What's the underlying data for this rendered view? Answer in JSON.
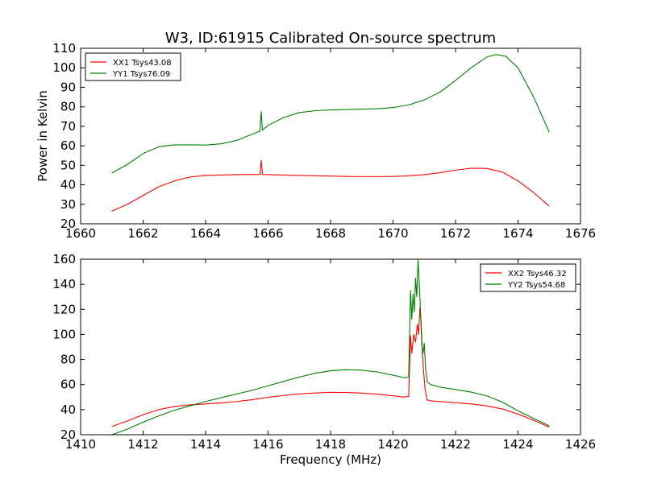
{
  "figure": {
    "title": "W3, ID:61915 Calibrated On-source spectrum",
    "ylabel": "Power in Kelvin",
    "xlabel": "Frequency (MHz)"
  },
  "chart_data": [
    {
      "type": "line",
      "title": "W3, ID:61915 Calibrated On-source spectrum",
      "xlabel": "",
      "ylabel": "Power in Kelvin",
      "xlim": [
        1660,
        1676
      ],
      "ylim": [
        20,
        110
      ],
      "xticks": [
        1660,
        1662,
        1664,
        1666,
        1668,
        1670,
        1672,
        1674,
        1676
      ],
      "yticks": [
        20,
        30,
        40,
        50,
        60,
        70,
        80,
        90,
        100,
        110
      ],
      "grid": false,
      "legend_position": "top-left",
      "series": [
        {
          "name": "XX1 Tsys43.08",
          "color": "#ff0000",
          "x": [
            1661.0,
            1661.5,
            1662.0,
            1662.5,
            1663.0,
            1663.5,
            1664.0,
            1664.5,
            1665.0,
            1665.5,
            1665.74,
            1665.78,
            1665.82,
            1666.0,
            1666.5,
            1667.0,
            1667.5,
            1668.0,
            1668.5,
            1669.0,
            1669.5,
            1670.0,
            1670.5,
            1671.0,
            1671.5,
            1672.0,
            1672.5,
            1673.0,
            1673.5,
            1674.0,
            1674.5,
            1675.0
          ],
          "y": [
            26.5,
            30.0,
            34.5,
            39.0,
            42.0,
            44.0,
            44.8,
            45.0,
            45.2,
            45.3,
            45.3,
            52.5,
            45.3,
            45.2,
            45.0,
            44.8,
            44.6,
            44.5,
            44.3,
            44.2,
            44.2,
            44.3,
            44.6,
            45.2,
            46.2,
            47.5,
            48.5,
            48.4,
            46.5,
            42.0,
            36.0,
            29.0
          ]
        },
        {
          "name": "YY1 Tsys76.09",
          "color": "#008000",
          "x": [
            1661.0,
            1661.5,
            1662.0,
            1662.5,
            1663.0,
            1663.5,
            1664.0,
            1664.5,
            1665.0,
            1665.5,
            1665.74,
            1665.78,
            1665.82,
            1666.0,
            1666.5,
            1667.0,
            1667.5,
            1668.0,
            1668.5,
            1669.0,
            1669.5,
            1670.0,
            1670.5,
            1671.0,
            1671.5,
            1672.0,
            1672.5,
            1673.0,
            1673.3,
            1673.6,
            1674.0,
            1674.5,
            1675.0
          ],
          "y": [
            46.0,
            50.5,
            56.0,
            59.5,
            60.5,
            60.5,
            60.4,
            61.0,
            62.8,
            66.0,
            67.5,
            77.5,
            68.0,
            70.5,
            74.5,
            77.0,
            78.0,
            78.4,
            78.6,
            78.8,
            79.0,
            79.6,
            81.0,
            83.5,
            87.5,
            93.5,
            100.0,
            105.5,
            106.8,
            106.0,
            100.0,
            85.0,
            67.0
          ]
        }
      ]
    },
    {
      "type": "line",
      "title": "",
      "xlabel": "Frequency (MHz)",
      "ylabel": "",
      "xlim": [
        1410,
        1426
      ],
      "ylim": [
        20,
        160
      ],
      "xticks": [
        1410,
        1412,
        1414,
        1416,
        1418,
        1420,
        1422,
        1424,
        1426
      ],
      "yticks": [
        20,
        40,
        60,
        80,
        100,
        120,
        140,
        160
      ],
      "grid": false,
      "legend_position": "top-right",
      "series": [
        {
          "name": "XX2 Tsys46.32",
          "color": "#ff0000",
          "x": [
            1411.0,
            1411.5,
            1412.0,
            1412.5,
            1413.0,
            1413.5,
            1414.0,
            1414.5,
            1415.0,
            1415.5,
            1416.0,
            1416.5,
            1417.0,
            1417.5,
            1418.0,
            1418.5,
            1419.0,
            1419.5,
            1420.0,
            1420.35,
            1420.5,
            1420.56,
            1420.6,
            1420.66,
            1420.72,
            1420.78,
            1420.82,
            1420.86,
            1420.9,
            1420.94,
            1420.98,
            1421.02,
            1421.08,
            1421.2,
            1421.5,
            1422.0,
            1422.5,
            1423.0,
            1423.5,
            1424.0,
            1424.5,
            1425.0
          ],
          "y": [
            26.5,
            31.0,
            36.0,
            40.0,
            42.5,
            43.8,
            44.5,
            45.3,
            46.5,
            48.0,
            49.8,
            51.3,
            52.5,
            53.3,
            53.8,
            53.7,
            53.2,
            52.3,
            51.0,
            50.0,
            50.5,
            99.0,
            85.0,
            100.0,
            94.0,
            108.0,
            100.0,
            121.0,
            110.0,
            85.0,
            70.0,
            58.0,
            48.0,
            47.0,
            46.5,
            45.5,
            44.5,
            43.0,
            40.5,
            36.5,
            31.5,
            26.0
          ]
        },
        {
          "name": "YY2 Tsys54.68",
          "color": "#008000",
          "x": [
            1411.0,
            1411.5,
            1412.0,
            1412.5,
            1413.0,
            1413.5,
            1414.0,
            1414.5,
            1415.0,
            1415.5,
            1416.0,
            1416.5,
            1417.0,
            1417.5,
            1418.0,
            1418.5,
            1419.0,
            1419.5,
            1420.0,
            1420.35,
            1420.5,
            1420.56,
            1420.6,
            1420.64,
            1420.68,
            1420.72,
            1420.76,
            1420.8,
            1420.84,
            1420.88,
            1420.92,
            1420.96,
            1421.0,
            1421.04,
            1421.1,
            1421.2,
            1421.5,
            1422.0,
            1422.5,
            1423.0,
            1423.5,
            1424.0,
            1424.5,
            1425.0
          ],
          "y": [
            20.0,
            24.5,
            30.0,
            35.0,
            39.5,
            43.0,
            46.5,
            49.5,
            52.5,
            55.5,
            59.0,
            62.5,
            66.0,
            69.0,
            71.0,
            71.8,
            71.5,
            70.0,
            67.5,
            65.5,
            66.0,
            135.0,
            112.0,
            132.0,
            118.0,
            145.0,
            130.0,
            160.0,
            140.0,
            118.0,
            92.0,
            85.0,
            93.0,
            73.0,
            62.0,
            60.0,
            58.0,
            56.0,
            54.0,
            51.0,
            46.0,
            39.0,
            33.0,
            27.0
          ]
        }
      ]
    }
  ]
}
